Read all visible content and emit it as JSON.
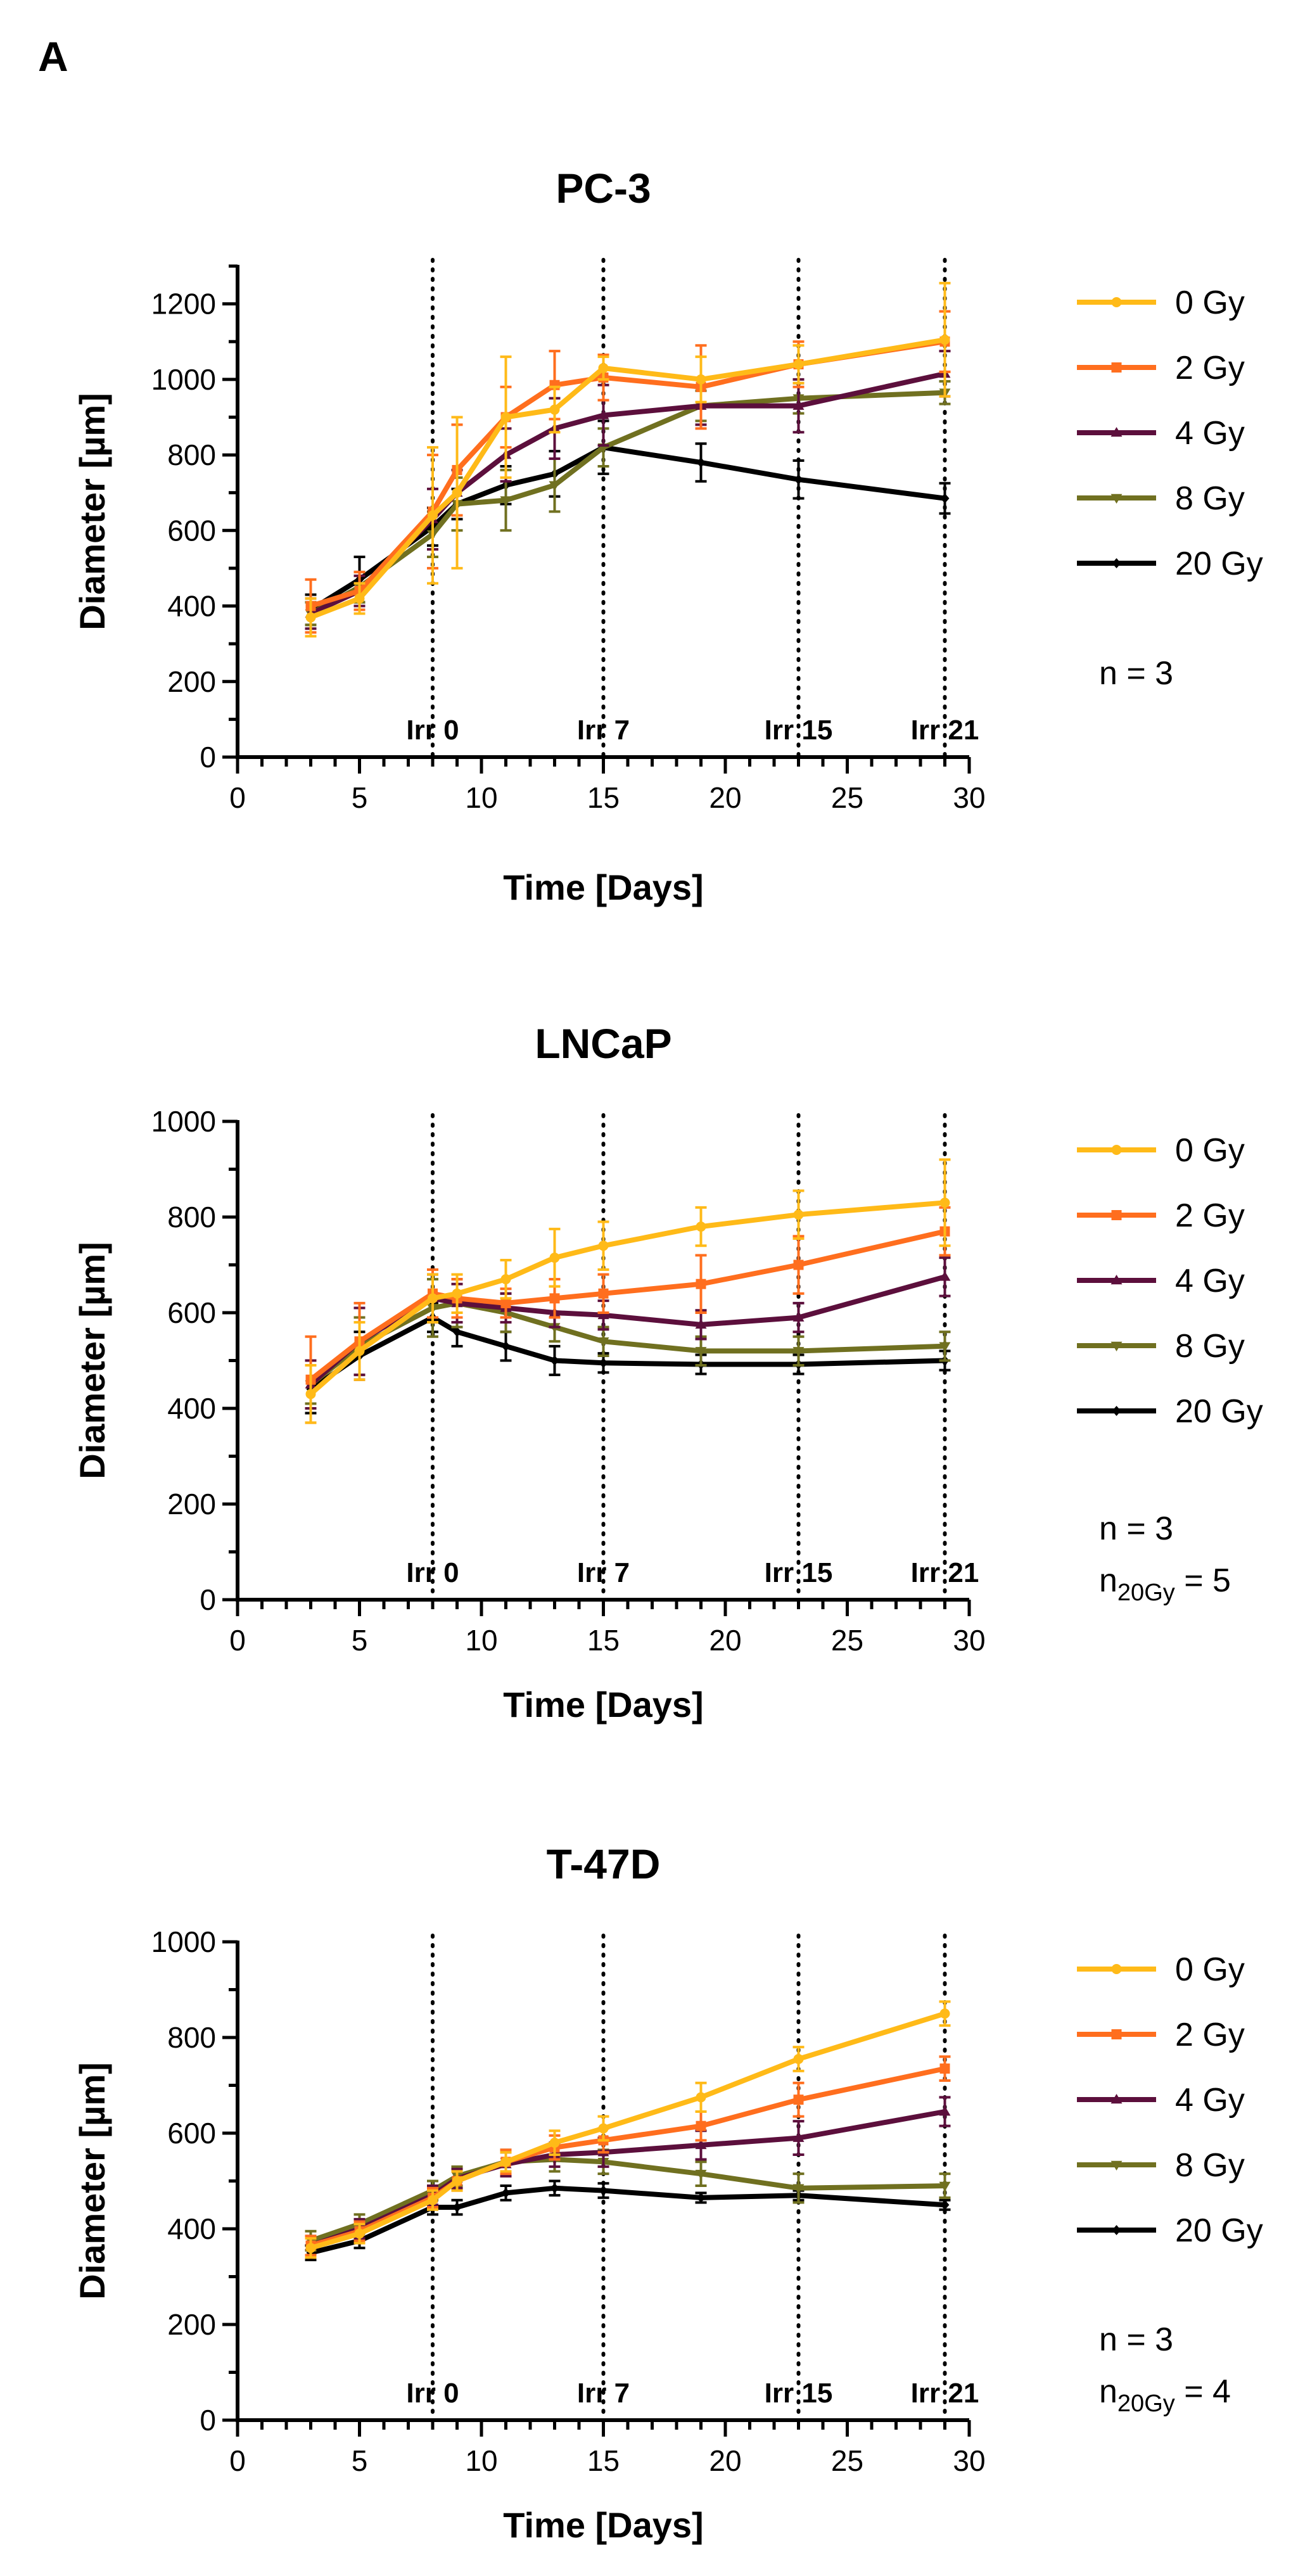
{
  "panel_label": "A",
  "colors": {
    "0 Gy": "#FFBA18",
    "2 Gy": "#FF6E1E",
    "4 Gy": "#5C0F3C",
    "8 Gy": "#707020",
    "20 Gy": "#000000"
  },
  "chart_data": [
    {
      "type": "line",
      "title": "PC-3",
      "xlabel": "Time [Days]",
      "ylabel": "Diameter [µm]",
      "xlim": [
        0,
        30
      ],
      "ylim": [
        0,
        1300
      ],
      "xticks": [
        0,
        5,
        10,
        15,
        20,
        25,
        30
      ],
      "yticks": [
        0,
        200,
        400,
        600,
        800,
        1000,
        1200
      ],
      "irradiation_lines": [
        {
          "x": 8,
          "label": "Irr 0"
        },
        {
          "x": 15,
          "label": "Irr 7"
        },
        {
          "x": 23,
          "label": "Irr 15"
        },
        {
          "x": 29,
          "label": "Irr 21"
        }
      ],
      "note": "n = 3",
      "note_subscript_line": null,
      "series": [
        {
          "name": "0 Gy",
          "x": [
            3,
            5,
            8,
            9,
            11,
            13,
            15,
            19,
            23,
            29
          ],
          "y": [
            370,
            420,
            640,
            700,
            900,
            920,
            1030,
            1000,
            1040,
            1105
          ],
          "err": [
            50,
            40,
            180,
            200,
            160,
            60,
            30,
            60,
            50,
            150
          ]
        },
        {
          "name": "2 Gy",
          "x": [
            3,
            5,
            8,
            9,
            11,
            13,
            15,
            19,
            23,
            29
          ],
          "y": [
            400,
            440,
            650,
            760,
            900,
            985,
            1005,
            980,
            1040,
            1100
          ],
          "err": [
            70,
            50,
            150,
            120,
            80,
            90,
            60,
            110,
            60,
            80
          ]
        },
        {
          "name": "4 Gy",
          "x": [
            3,
            5,
            8,
            9,
            11,
            13,
            15,
            19,
            23,
            29
          ],
          "y": [
            380,
            440,
            630,
            700,
            800,
            870,
            905,
            930,
            930,
            1015
          ],
          "err": [
            40,
            40,
            80,
            60,
            70,
            80,
            80,
            50,
            70,
            60
          ]
        },
        {
          "name": "8 Gy",
          "x": [
            3,
            5,
            8,
            9,
            11,
            13,
            15,
            19,
            23,
            29
          ],
          "y": [
            380,
            450,
            590,
            670,
            680,
            720,
            820,
            930,
            950,
            965
          ],
          "err": [
            30,
            40,
            60,
            70,
            80,
            70,
            50,
            40,
            40,
            30
          ]
        },
        {
          "name": "20 Gy",
          "x": [
            3,
            5,
            8,
            9,
            11,
            13,
            15,
            19,
            23,
            29
          ],
          "y": [
            390,
            470,
            610,
            670,
            720,
            750,
            820,
            780,
            735,
            685
          ],
          "err": [
            40,
            60,
            50,
            40,
            50,
            60,
            70,
            50,
            50,
            40
          ]
        }
      ]
    },
    {
      "type": "line",
      "title": "LNCaP",
      "xlabel": "Time [Days]",
      "ylabel": "Diameter [µm]",
      "xlim": [
        0,
        30
      ],
      "ylim": [
        0,
        1000
      ],
      "xticks": [
        0,
        5,
        10,
        15,
        20,
        25,
        30
      ],
      "yticks": [
        0,
        200,
        400,
        600,
        800,
        1000
      ],
      "irradiation_lines": [
        {
          "x": 8,
          "label": "Irr 0"
        },
        {
          "x": 15,
          "label": "Irr 7"
        },
        {
          "x": 23,
          "label": "Irr 15"
        },
        {
          "x": 29,
          "label": "Irr 21"
        }
      ],
      "note": "n = 3",
      "note_subscript_line": {
        "prefix": "n",
        "subscript": "20Gy",
        "suffix": " = 5"
      },
      "series": [
        {
          "name": "0 Gy",
          "x": [
            3,
            5,
            8,
            9,
            11,
            13,
            15,
            19,
            23,
            29
          ],
          "y": [
            430,
            520,
            630,
            640,
            670,
            715,
            740,
            780,
            805,
            830
          ],
          "err": [
            60,
            60,
            50,
            40,
            40,
            60,
            50,
            40,
            50,
            90
          ]
        },
        {
          "name": "2 Gy",
          "x": [
            3,
            5,
            8,
            9,
            11,
            13,
            15,
            19,
            23,
            29
          ],
          "y": [
            460,
            540,
            640,
            630,
            620,
            630,
            640,
            660,
            700,
            770
          ],
          "err": [
            90,
            80,
            50,
            40,
            30,
            40,
            40,
            60,
            60,
            50
          ]
        },
        {
          "name": "4 Gy",
          "x": [
            3,
            5,
            8,
            9,
            11,
            13,
            15,
            19,
            23,
            29
          ],
          "y": [
            450,
            540,
            630,
            620,
            610,
            600,
            595,
            575,
            590,
            675
          ],
          "err": [
            50,
            70,
            50,
            40,
            30,
            30,
            30,
            30,
            30,
            40
          ]
        },
        {
          "name": "8 Gy",
          "x": [
            3,
            5,
            8,
            9,
            11,
            13,
            15,
            19,
            23,
            29
          ],
          "y": [
            450,
            530,
            610,
            620,
            600,
            570,
            540,
            520,
            520,
            530
          ],
          "err": [
            40,
            60,
            60,
            50,
            40,
            30,
            30,
            30,
            30,
            30
          ]
        },
        {
          "name": "20 Gy",
          "x": [
            3,
            5,
            8,
            9,
            11,
            13,
            15,
            19,
            23,
            29
          ],
          "y": [
            440,
            510,
            590,
            560,
            530,
            500,
            495,
            492,
            492,
            500
          ],
          "err": [
            50,
            50,
            30,
            30,
            30,
            30,
            20,
            20,
            20,
            20
          ]
        }
      ]
    },
    {
      "type": "line",
      "title": "T-47D",
      "xlabel": "Time [Days]",
      "ylabel": "Diameter [µm]",
      "xlim": [
        0,
        30
      ],
      "ylim": [
        0,
        1000
      ],
      "xticks": [
        0,
        5,
        10,
        15,
        20,
        25,
        30
      ],
      "yticks": [
        0,
        200,
        400,
        600,
        800,
        1000
      ],
      "irradiation_lines": [
        {
          "x": 8,
          "label": "Irr 0"
        },
        {
          "x": 15,
          "label": "Irr 7"
        },
        {
          "x": 23,
          "label": "Irr 15"
        },
        {
          "x": 29,
          "label": "Irr 21"
        }
      ],
      "note": "n = 3",
      "note_subscript_line": {
        "prefix": "n",
        "subscript": "20Gy",
        "suffix": " = 4"
      },
      "series": [
        {
          "name": "0 Gy",
          "x": [
            3,
            5,
            8,
            9,
            11,
            13,
            15,
            19,
            23,
            29
          ],
          "y": [
            360,
            390,
            460,
            500,
            540,
            580,
            610,
            675,
            755,
            850
          ],
          "err": [
            20,
            20,
            20,
            20,
            20,
            25,
            25,
            30,
            25,
            25
          ]
        },
        {
          "name": "2 Gy",
          "x": [
            3,
            5,
            8,
            9,
            11,
            13,
            15,
            19,
            23,
            29
          ],
          "y": [
            365,
            395,
            465,
            500,
            540,
            570,
            585,
            615,
            670,
            735
          ],
          "err": [
            20,
            20,
            20,
            20,
            25,
            25,
            25,
            30,
            35,
            25
          ]
        },
        {
          "name": "4 Gy",
          "x": [
            3,
            5,
            8,
            9,
            11,
            13,
            15,
            19,
            23,
            29
          ],
          "y": [
            365,
            400,
            470,
            505,
            535,
            555,
            560,
            575,
            590,
            645
          ],
          "err": [
            20,
            20,
            20,
            20,
            25,
            25,
            30,
            30,
            35,
            30
          ]
        },
        {
          "name": "8 Gy",
          "x": [
            3,
            5,
            8,
            9,
            11,
            13,
            15,
            19,
            23,
            29
          ],
          "y": [
            375,
            410,
            480,
            510,
            540,
            545,
            540,
            515,
            485,
            490
          ],
          "err": [
            20,
            20,
            20,
            20,
            25,
            25,
            25,
            25,
            30,
            25
          ]
        },
        {
          "name": "20 Gy",
          "x": [
            3,
            5,
            8,
            9,
            11,
            13,
            15,
            19,
            23,
            29
          ],
          "y": [
            350,
            375,
            445,
            445,
            475,
            485,
            480,
            465,
            470,
            450
          ],
          "err": [
            15,
            15,
            15,
            15,
            15,
            15,
            15,
            10,
            10,
            10
          ]
        }
      ]
    }
  ]
}
